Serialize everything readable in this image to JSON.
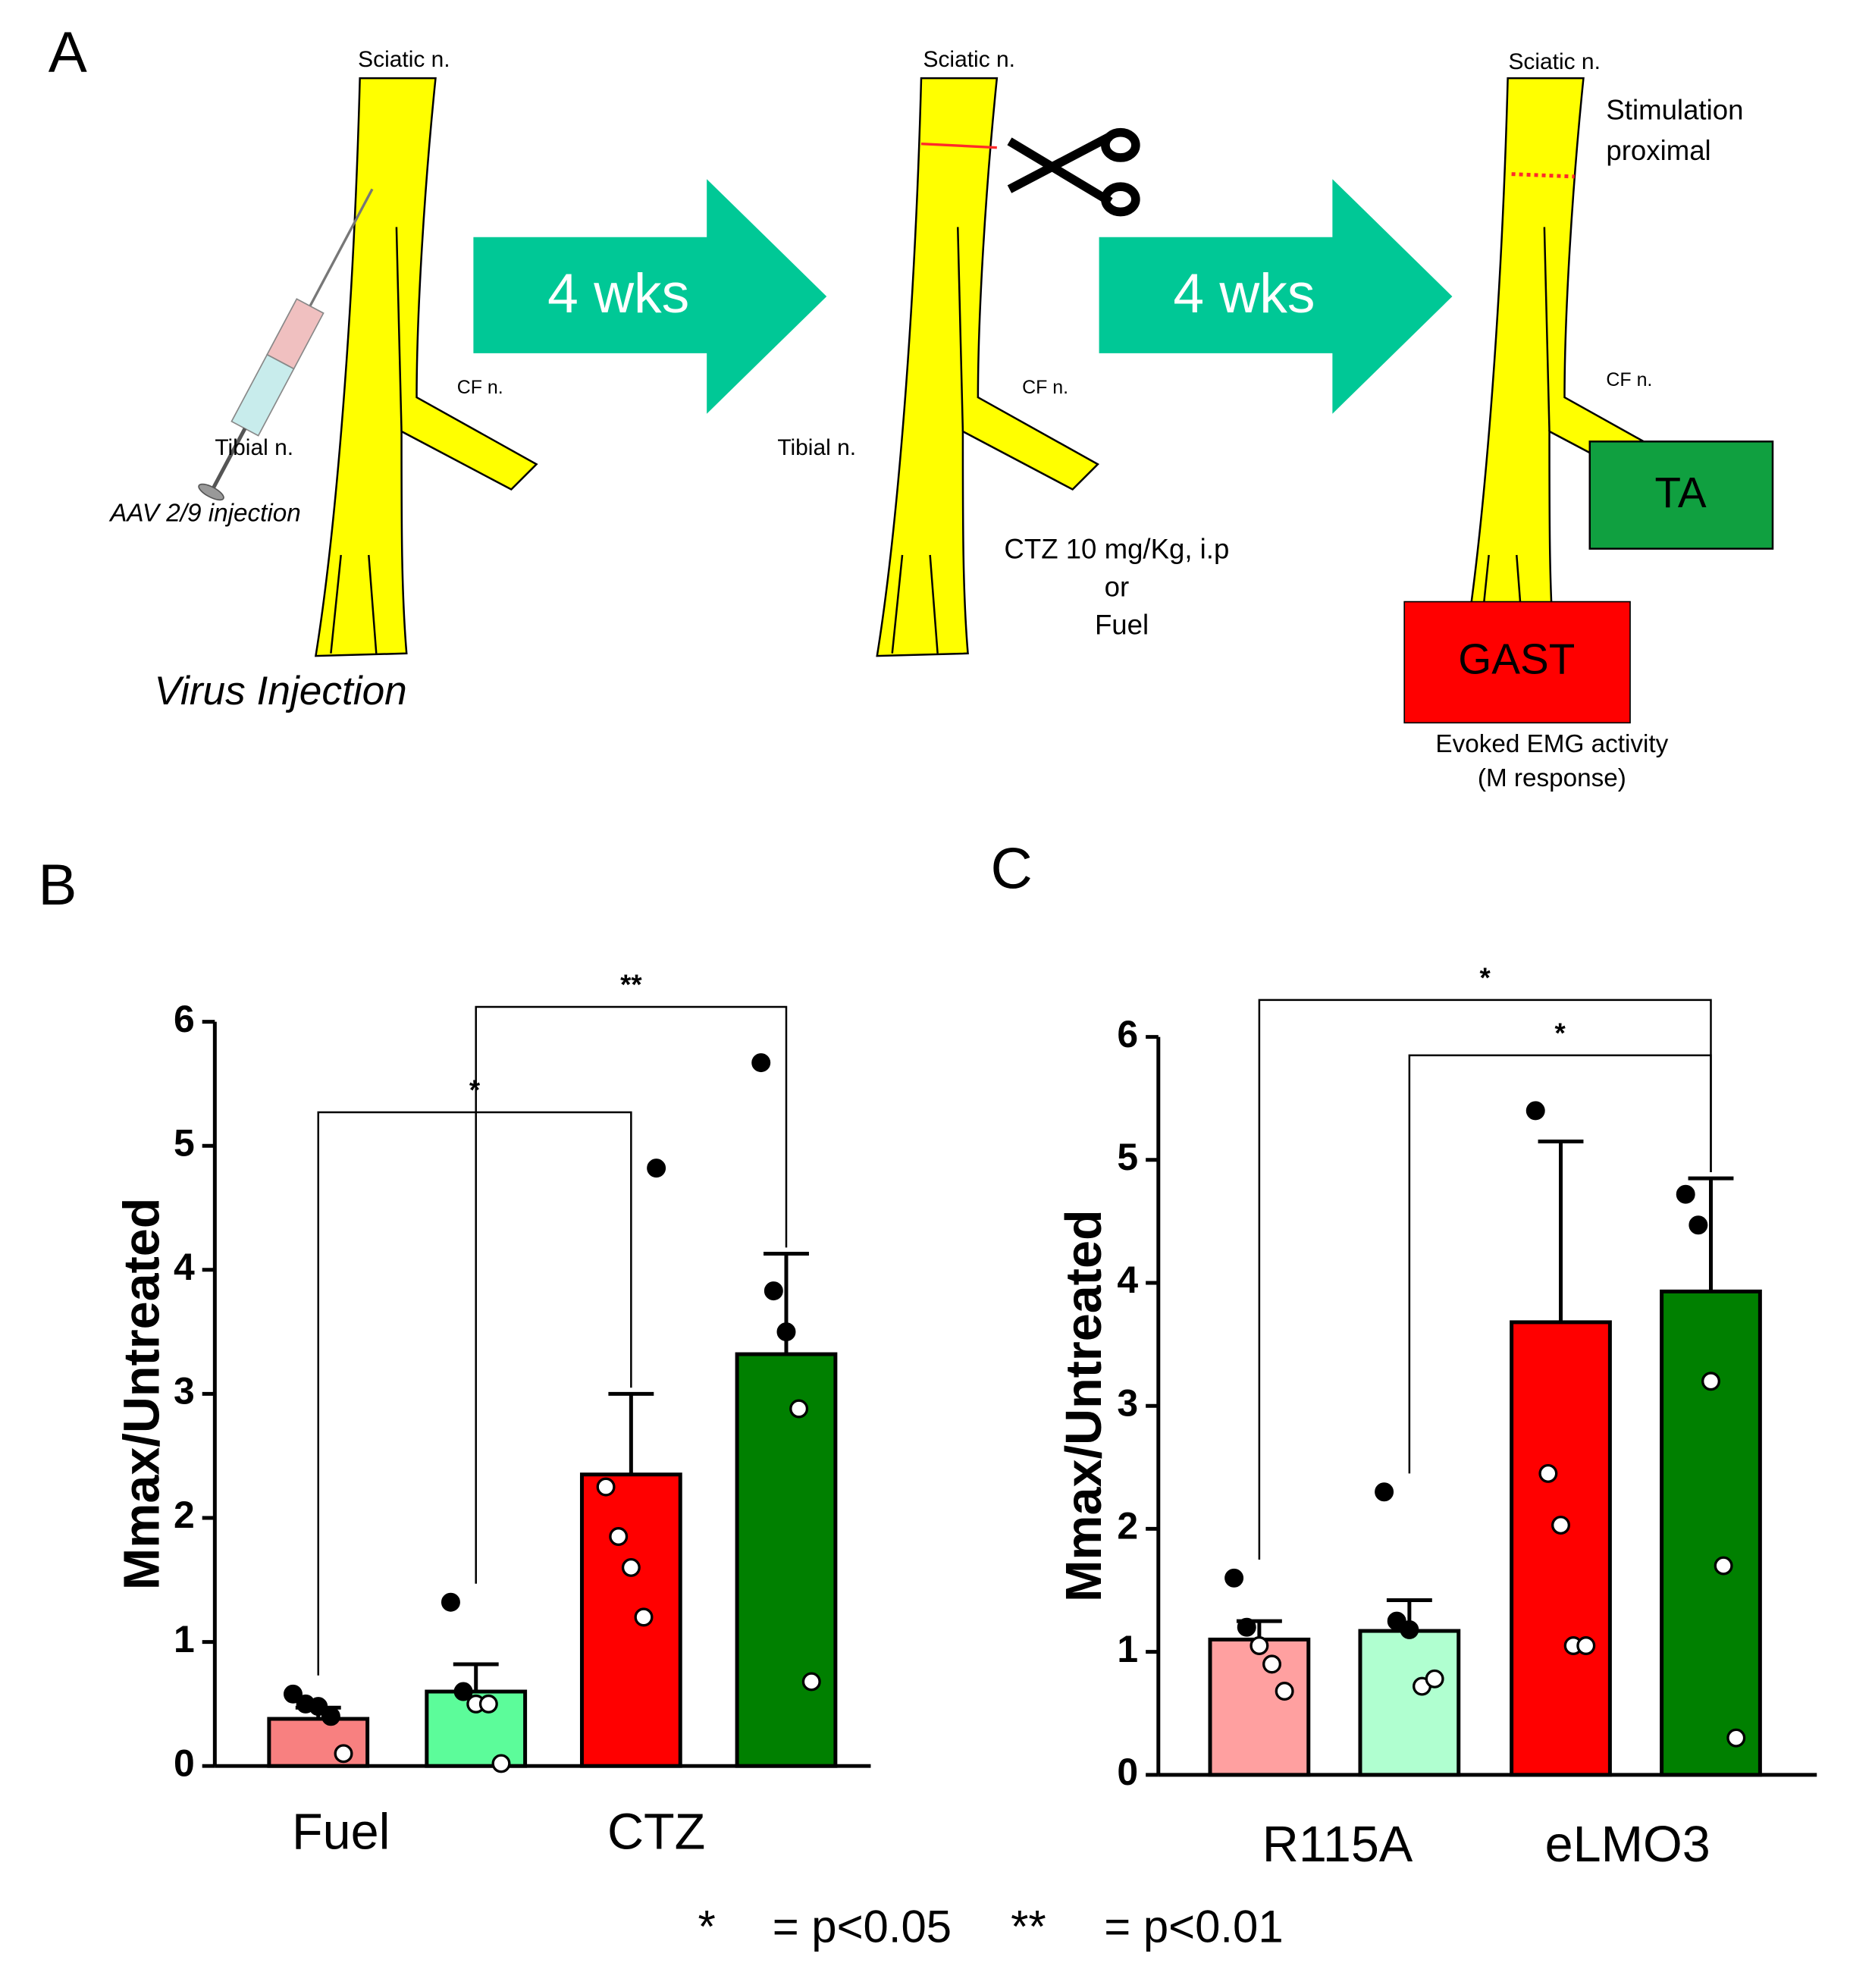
{
  "panels": [
    "A",
    "B",
    "C"
  ],
  "diagram": {
    "sciatic": [
      "Sciatic n.",
      "Sciatic n.",
      "Sciatic n."
    ],
    "tibial": [
      "Tibial n.",
      "Tibial n."
    ],
    "cf": [
      "CF n.",
      "CF n.",
      "CF n."
    ],
    "injection": "AAV 2/9 injection",
    "step1": "Virus Injection",
    "arrows": [
      "4 wks",
      "4 wks"
    ],
    "treatment": [
      "CTZ 10 mg/Kg, i.p",
      "or",
      "Fuel"
    ],
    "stimulation": [
      "Stimulation",
      "proximal"
    ],
    "muscles": [
      "TA",
      "GAST"
    ],
    "recording": [
      "Evoked EMG activity",
      "(M response)"
    ]
  },
  "chart_data": [
    {
      "type": "bar",
      "y_label": "Mmax/Untreated",
      "categories": [
        "Fuel",
        "CTZ"
      ],
      "ylim": [
        0,
        6
      ],
      "yticks": [
        0,
        1,
        2,
        3,
        4,
        5,
        6
      ],
      "series": [
        {
          "colors": [
            "#f88080",
            "#ff0000"
          ],
          "values": [
            0.38,
            2.35
          ],
          "errors": [
            0.09,
            0.65
          ],
          "points": [
            [
              0.58,
              0.5,
              0.48,
              0.4,
              0.1
            ],
            [
              2.25,
              1.85,
              1.6,
              1.2,
              4.82
            ]
          ]
        },
        {
          "colors": [
            "#5cfc9a",
            "#008000"
          ],
          "values": [
            0.6,
            3.32
          ],
          "errors": [
            0.22,
            0.81
          ],
          "points": [
            [
              1.32,
              0.6,
              0.5,
              0.5,
              0.02
            ],
            [
              5.67,
              3.83,
              3.5,
              2.88,
              0.68
            ]
          ]
        }
      ],
      "brackets": [
        {
          "label": "*",
          "bars": [
            0,
            2
          ]
        },
        {
          "label": "**",
          "bars": [
            1,
            3
          ]
        }
      ]
    },
    {
      "type": "bar",
      "y_label": "Mmax/Untreated",
      "categories": [
        "R115A",
        "eLMO3"
      ],
      "ylim": [
        0,
        6
      ],
      "yticks": [
        0,
        1,
        2,
        3,
        4,
        5,
        6
      ],
      "series": [
        {
          "colors": [
            "#ffa0a0",
            "#ff0000"
          ],
          "values": [
            1.1,
            3.68
          ],
          "errors": [
            0.15,
            1.47
          ],
          "points": [
            [
              1.6,
              1.2,
              1.05,
              0.9,
              0.68
            ],
            [
              5.4,
              2.45,
              2.03,
              1.05,
              1.05
            ]
          ]
        },
        {
          "colors": [
            "#b0ffd0",
            "#008000"
          ],
          "values": [
            1.17,
            3.93
          ],
          "errors": [
            0.25,
            0.92
          ],
          "points": [
            [
              2.3,
              1.25,
              1.18,
              0.72,
              0.78
            ],
            [
              4.72,
              4.47,
              3.2,
              1.7,
              0.3
            ]
          ]
        }
      ],
      "brackets": [
        {
          "label": "*",
          "bars": [
            0,
            3
          ]
        },
        {
          "label": "*",
          "bars": [
            1,
            3
          ]
        }
      ]
    }
  ],
  "footnote": [
    "*",
    "= p<0.05",
    "**",
    "= p<0.01"
  ]
}
